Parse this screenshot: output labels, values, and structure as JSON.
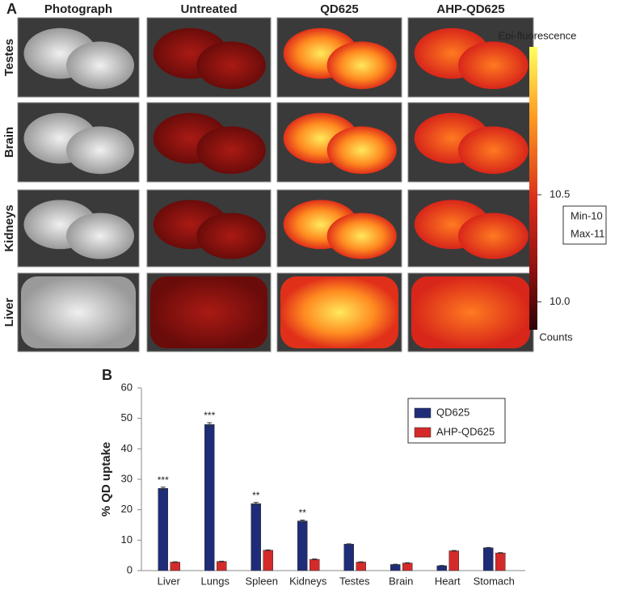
{
  "panel_a": {
    "label": "A",
    "columns": [
      "Photograph",
      "Untreated",
      "QD625",
      "AHP-QD625"
    ],
    "rows": [
      "Testes",
      "Brain",
      "Kidneys",
      "Liver"
    ],
    "colorbar": {
      "title": "Epi-fluorescence",
      "unit": "Counts",
      "lim": [
        9.87,
        11.19
      ],
      "ticks": [
        {
          "value": 10,
          "label": "10.0"
        },
        10.5
      ],
      "box": [
        "Min-10",
        "Max-11"
      ]
    }
  },
  "chart_data": {
    "type": "bar",
    "label": "B",
    "ylabel": "% QD uptake",
    "categories": [
      "Liver",
      "Lungs",
      "Spleen",
      "Kidneys",
      "Testes",
      "Brain",
      "Heart",
      "Stomach"
    ],
    "series": [
      {
        "name": "QD625",
        "color": "#1f2d78",
        "values": [
          27,
          48,
          22,
          16.3,
          8.7,
          2,
          1.6,
          7.5
        ],
        "errors": [
          0.4,
          0.6,
          0.4,
          0.3,
          0.1,
          0.1,
          0.1,
          0.1
        ]
      },
      {
        "name": "AHP-QD625",
        "color": "#d42a2a",
        "values": [
          2.8,
          3,
          6.7,
          3.7,
          2.8,
          2.5,
          6.5,
          5.8
        ],
        "errors": [
          0.1,
          0.1,
          0.1,
          0.1,
          0.1,
          0.1,
          0.1,
          0.1
        ]
      }
    ],
    "significance": [
      "***",
      "***",
      "**",
      "**",
      null,
      null,
      null,
      null
    ],
    "ylim": [
      0,
      60
    ],
    "yticks": [
      0,
      10,
      20,
      30,
      40,
      50,
      60
    ],
    "legend": "upper right"
  }
}
